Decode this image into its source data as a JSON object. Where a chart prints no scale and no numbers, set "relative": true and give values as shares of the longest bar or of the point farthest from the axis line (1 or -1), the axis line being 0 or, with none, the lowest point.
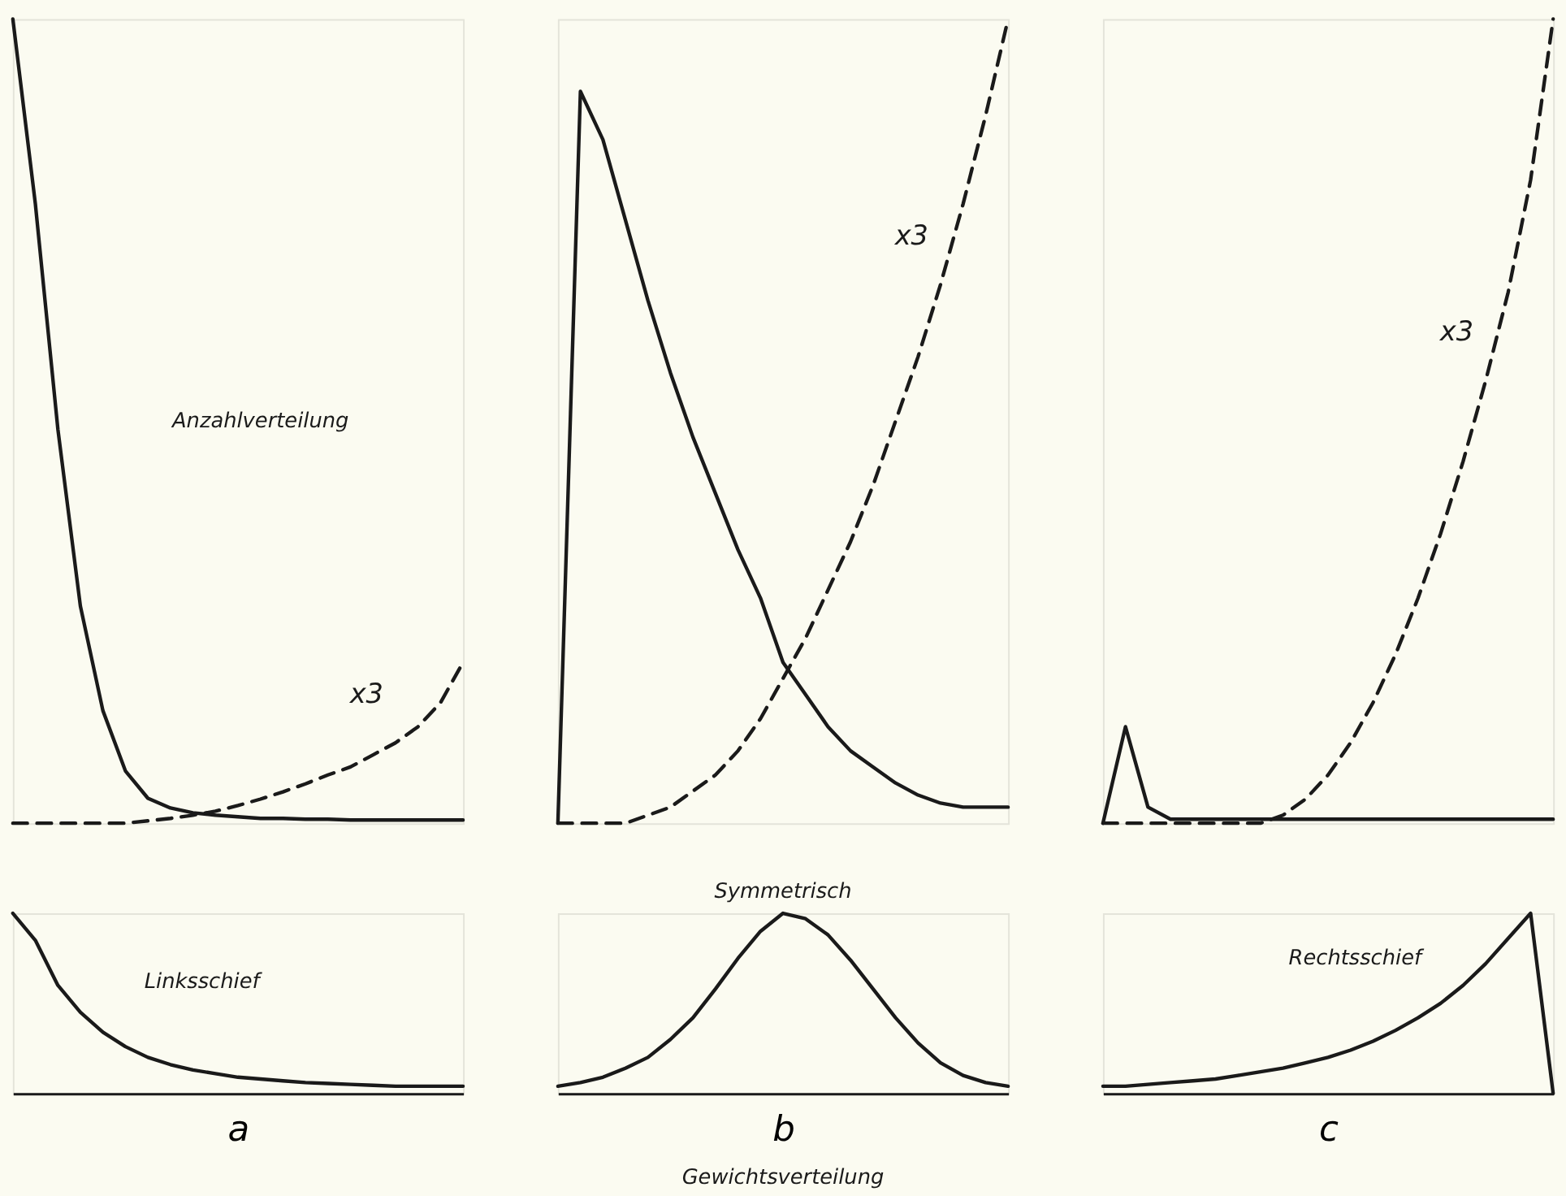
{
  "chart_data": [
    {
      "type": "line",
      "relative": true,
      "tick_labels": false,
      "categories": [
        null,
        null,
        null,
        null,
        null,
        null,
        null,
        null,
        null,
        null,
        null,
        null,
        null,
        null,
        null,
        null,
        null,
        null,
        null,
        null,
        null
      ],
      "annotations": [
        "Anzahlverteilung"
      ],
      "series": [
        {
          "color": "#1a1a1a",
          "line_style": "solid",
          "values": [
            1.0,
            0.77,
            0.49,
            0.27,
            0.14,
            0.065,
            0.031,
            0.019,
            0.013,
            0.01,
            0.008,
            0.006,
            0.006,
            0.005,
            0.005,
            0.004,
            0.004,
            0.004,
            0.004,
            0.004,
            0.004
          ]
        },
        {
          "name": "x3",
          "color": "#1a1a1a",
          "line_style": "dashed",
          "values": [
            0,
            0,
            0,
            0,
            0,
            0,
            0.003,
            0.006,
            0.01,
            0.015,
            0.022,
            0.03,
            0.039,
            0.049,
            0.06,
            0.07,
            0.085,
            0.1,
            0.12,
            0.15,
            0.2
          ]
        }
      ]
    },
    {
      "type": "line",
      "relative": true,
      "tick_labels": false,
      "categories": [
        null,
        null,
        null,
        null,
        null,
        null,
        null,
        null,
        null,
        null,
        null,
        null,
        null,
        null,
        null,
        null,
        null,
        null,
        null,
        null,
        null
      ],
      "series": [
        {
          "color": "#1a1a1a",
          "line_style": "solid",
          "values": [
            0,
            0.91,
            0.85,
            0.75,
            0.65,
            0.56,
            0.48,
            0.41,
            0.34,
            0.28,
            0.2,
            0.16,
            0.12,
            0.09,
            0.07,
            0.05,
            0.035,
            0.025,
            0.02,
            0.02,
            0.02
          ]
        },
        {
          "name": "x3",
          "color": "#1a1a1a",
          "line_style": "dashed",
          "values": [
            0,
            0,
            0,
            0,
            0.01,
            0.02,
            0.04,
            0.06,
            0.09,
            0.13,
            0.18,
            0.23,
            0.29,
            0.35,
            0.42,
            0.5,
            0.58,
            0.67,
            0.77,
            0.88,
            1.0
          ]
        }
      ]
    },
    {
      "type": "line",
      "relative": true,
      "tick_labels": false,
      "categories": [
        null,
        null,
        null,
        null,
        null,
        null,
        null,
        null,
        null,
        null,
        null,
        null,
        null,
        null,
        null,
        null,
        null,
        null,
        null,
        null,
        null
      ],
      "series": [
        {
          "color": "#1a1a1a",
          "line_style": "solid",
          "values": [
            0,
            0.12,
            0.02,
            0.005,
            0.005,
            0.005,
            0.005,
            0.005,
            0.005,
            0.005,
            0.005,
            0.005,
            0.005,
            0.005,
            0.005,
            0.005,
            0.005,
            0.005,
            0.005,
            0.005,
            0.005
          ]
        },
        {
          "name": "x3",
          "color": "#1a1a1a",
          "line_style": "dashed",
          "values": [
            0,
            0,
            0,
            0,
            0,
            0,
            0,
            0,
            0.01,
            0.03,
            0.06,
            0.1,
            0.15,
            0.21,
            0.28,
            0.36,
            0.45,
            0.55,
            0.66,
            0.8,
            1.0
          ]
        }
      ]
    },
    {
      "type": "line",
      "relative": true,
      "tick_labels": false,
      "xlabel": "a",
      "categories": [
        null,
        null,
        null,
        null,
        null,
        null,
        null,
        null,
        null,
        null,
        null,
        null,
        null,
        null,
        null,
        null,
        null,
        null,
        null,
        null,
        null
      ],
      "annotations": [
        "Linksschief"
      ],
      "series": [
        {
          "color": "#1a1a1a",
          "line_style": "solid",
          "values": [
            1.0,
            0.85,
            0.6,
            0.45,
            0.34,
            0.26,
            0.2,
            0.16,
            0.13,
            0.11,
            0.09,
            0.08,
            0.07,
            0.06,
            0.055,
            0.05,
            0.045,
            0.04,
            0.04,
            0.04,
            0.04
          ]
        }
      ]
    },
    {
      "type": "line",
      "relative": true,
      "tick_labels": false,
      "xlabel": "b",
      "categories": [
        null,
        null,
        null,
        null,
        null,
        null,
        null,
        null,
        null,
        null,
        null,
        null,
        null,
        null,
        null,
        null,
        null,
        null,
        null,
        null,
        null
      ],
      "annotations": [
        "Symmetrisch",
        "Gewichtsverteilung"
      ],
      "series": [
        {
          "color": "#1a1a1a",
          "line_style": "solid",
          "values": [
            0.04,
            0.06,
            0.09,
            0.14,
            0.2,
            0.3,
            0.42,
            0.58,
            0.75,
            0.9,
            1.0,
            0.97,
            0.88,
            0.74,
            0.58,
            0.42,
            0.28,
            0.17,
            0.1,
            0.06,
            0.04
          ]
        }
      ]
    },
    {
      "type": "line",
      "relative": true,
      "tick_labels": false,
      "xlabel": "c",
      "categories": [
        null,
        null,
        null,
        null,
        null,
        null,
        null,
        null,
        null,
        null,
        null,
        null,
        null,
        null,
        null,
        null,
        null,
        null,
        null,
        null,
        null
      ],
      "annotations": [
        "Rechtsschief"
      ],
      "series": [
        {
          "color": "#1a1a1a",
          "line_style": "solid",
          "values": [
            0.04,
            0.04,
            0.05,
            0.06,
            0.07,
            0.08,
            0.1,
            0.12,
            0.14,
            0.17,
            0.2,
            0.24,
            0.29,
            0.35,
            0.42,
            0.5,
            0.6,
            0.72,
            0.86,
            1.0,
            0
          ]
        }
      ]
    }
  ]
}
